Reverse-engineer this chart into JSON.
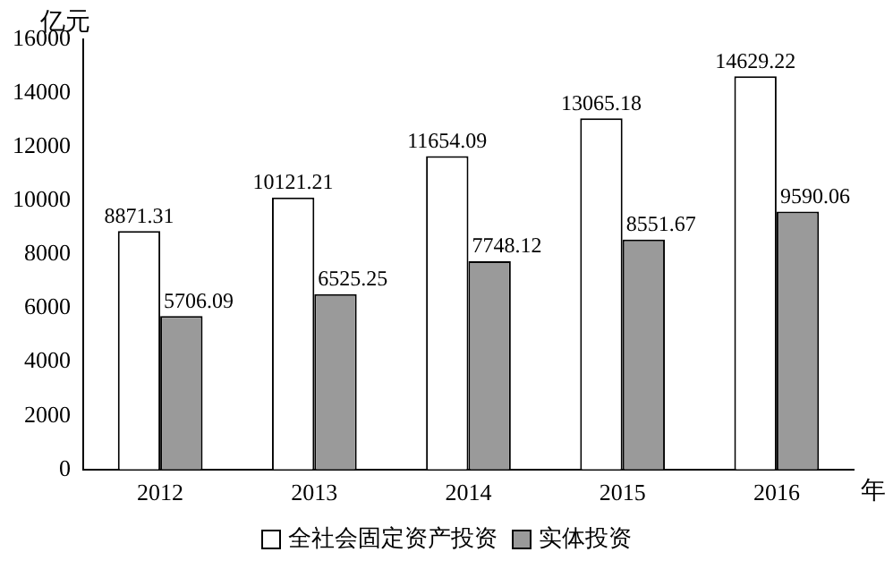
{
  "chart_data": {
    "type": "bar",
    "ylabel": "亿元",
    "xlabel": "年",
    "categories": [
      "2012",
      "2013",
      "2014",
      "2015",
      "2016"
    ],
    "series": [
      {
        "name": "全社会固定资产投资",
        "color": "#ffffff",
        "values": [
          8871.31,
          10121.21,
          11654.09,
          13065.18,
          14629.22
        ]
      },
      {
        "name": "实体投资",
        "color": "#9a9a9a",
        "values": [
          5706.09,
          6525.25,
          7748.12,
          8551.67,
          9590.06
        ]
      }
    ],
    "ylim": [
      0,
      16000
    ],
    "yticks": [
      0,
      2000,
      4000,
      6000,
      8000,
      10000,
      12000,
      14000,
      16000
    ],
    "grid": false,
    "legend": "bottom",
    "data_labels": true
  }
}
